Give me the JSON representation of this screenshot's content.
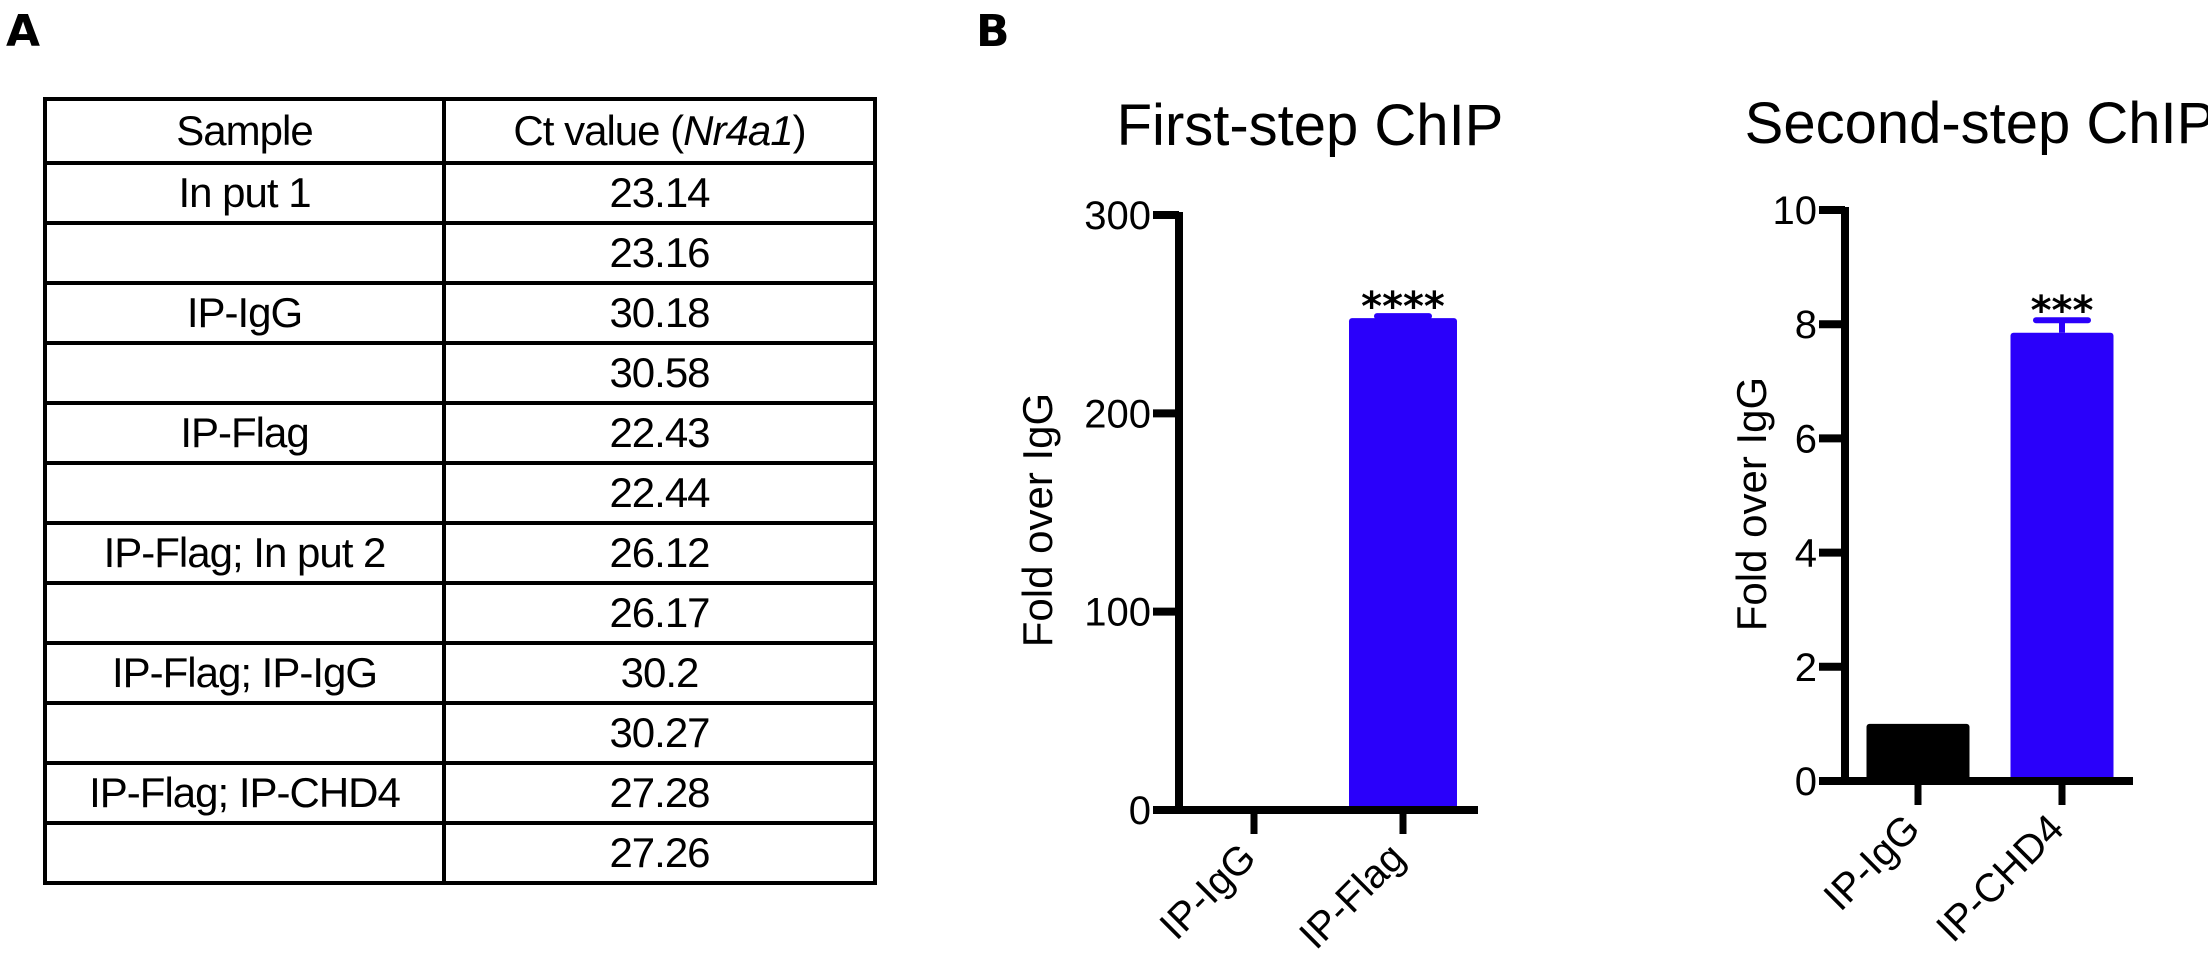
{
  "panels": {
    "a_label": "A",
    "b_label": "B"
  },
  "table": {
    "headers": {
      "sample": "Sample",
      "ct_prefix": "Ct value (",
      "ct_gene": "Nr4a1",
      "ct_suffix": ")"
    },
    "rows": [
      {
        "sample": "In put 1",
        "ct": "23.14"
      },
      {
        "sample": "",
        "ct": "23.16"
      },
      {
        "sample": "IP-IgG",
        "ct": "30.18"
      },
      {
        "sample": "",
        "ct": "30.58"
      },
      {
        "sample": "IP-Flag",
        "ct": "22.43"
      },
      {
        "sample": "",
        "ct": "22.44"
      },
      {
        "sample": "IP-Flag; In put 2",
        "ct": "26.12"
      },
      {
        "sample": "",
        "ct": "26.17"
      },
      {
        "sample": "IP-Flag; IP-IgG",
        "ct": "30.2"
      },
      {
        "sample": "",
        "ct": "30.27"
      },
      {
        "sample": "IP-Flag; IP-CHD4",
        "ct": "27.28"
      },
      {
        "sample": "",
        "ct": "27.26"
      }
    ]
  },
  "colors": {
    "igg_bar": "#000000",
    "target_bar": "#2a00fa",
    "axis": "#000000"
  },
  "chart_data": [
    {
      "type": "bar",
      "title": "First-step ChIP",
      "xlabel": "",
      "ylabel": "Fold over IgG",
      "categories": [
        "IP-IgG",
        "IP-Flag"
      ],
      "values": [
        1,
        248
      ],
      "errors": [
        0,
        1
      ],
      "significance": [
        "",
        "****"
      ],
      "bar_colors": [
        "#000000",
        "#2a00fa"
      ],
      "ylim": [
        0,
        300
      ],
      "yticks": [
        0,
        100,
        200,
        300
      ],
      "grid": false,
      "legend": null
    },
    {
      "type": "bar",
      "title": "Second-step ChIP",
      "xlabel": "",
      "ylabel": "Fold over IgG",
      "categories": [
        "IP-IgG",
        "IP-CHD4"
      ],
      "values": [
        1.0,
        7.85
      ],
      "errors": [
        0,
        0.22
      ],
      "significance": [
        "",
        "***"
      ],
      "bar_colors": [
        "#000000",
        "#2a00fa"
      ],
      "ylim": [
        0,
        10
      ],
      "yticks": [
        0,
        2,
        4,
        6,
        8,
        10
      ],
      "grid": false,
      "legend": null
    }
  ]
}
